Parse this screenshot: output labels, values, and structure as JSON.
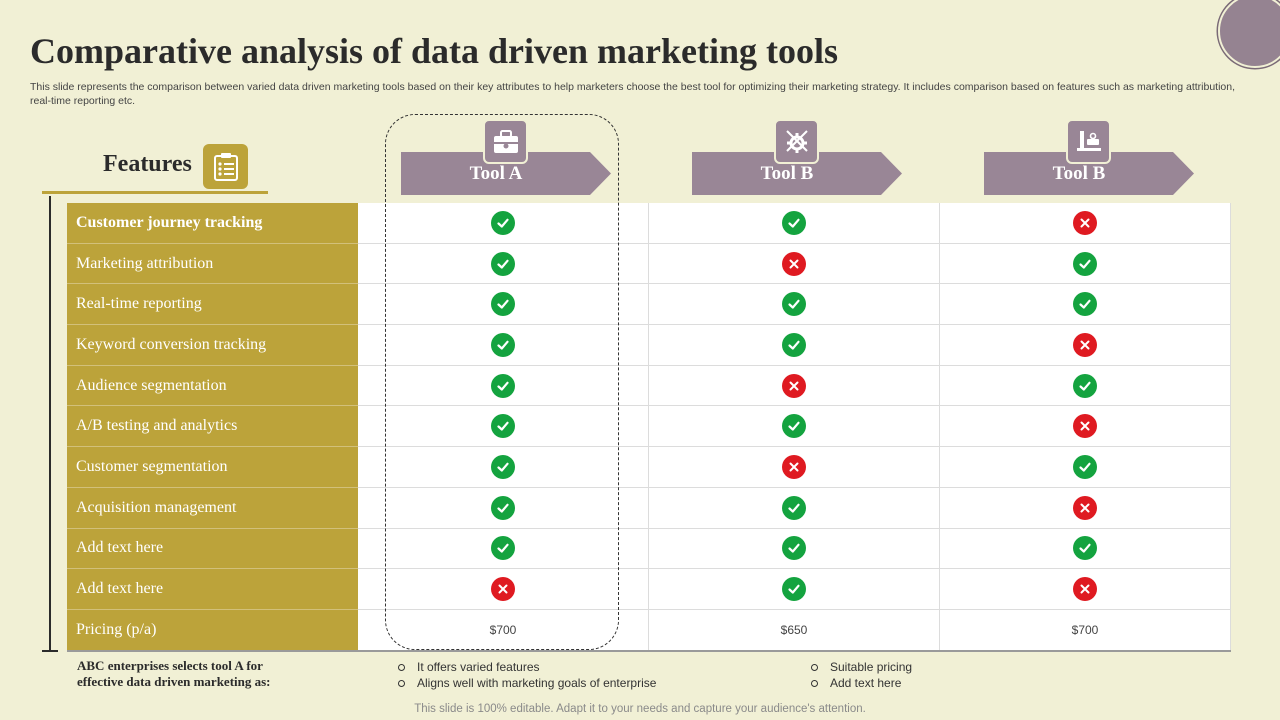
{
  "title": "Comparative analysis of data driven marketing tools",
  "subtitle": "This slide represents the comparison between varied data driven marketing tools based on their key attributes to help marketers choose the best tool for optimizing their marketing strategy. It includes comparison based on features such as marketing attribution, real-time reporting etc.",
  "features_heading": "Features",
  "tools": [
    {
      "label": "Tool A",
      "icon": "briefcase-icon"
    },
    {
      "label": "Tool B",
      "icon": "gear-tools-icon"
    },
    {
      "label": "Tool B",
      "icon": "workbench-tools-icon"
    }
  ],
  "rows": [
    {
      "feature": "Customer journey tracking",
      "values": [
        "yes",
        "yes",
        "no"
      ]
    },
    {
      "feature": "Marketing attribution",
      "values": [
        "yes",
        "no",
        "yes"
      ]
    },
    {
      "feature": "Real-time reporting",
      "values": [
        "yes",
        "yes",
        "yes"
      ]
    },
    {
      "feature": "Keyword conversion tracking",
      "values": [
        "yes",
        "yes",
        "no"
      ]
    },
    {
      "feature": "Audience segmentation",
      "values": [
        "yes",
        "no",
        "yes"
      ]
    },
    {
      "feature": "A/B testing and analytics",
      "values": [
        "yes",
        "yes",
        "no"
      ]
    },
    {
      "feature": "Customer segmentation",
      "values": [
        "yes",
        "no",
        "yes"
      ]
    },
    {
      "feature": "Acquisition management",
      "values": [
        "yes",
        "yes",
        "no"
      ]
    },
    {
      "feature": "Add text here",
      "values": [
        "yes",
        "yes",
        "yes"
      ]
    },
    {
      "feature": "Add text here",
      "values": [
        "no",
        "yes",
        "no"
      ]
    }
  ],
  "pricing": {
    "feature": "Pricing (p/a)",
    "values": [
      "$700",
      "$650",
      "$700"
    ]
  },
  "conclusion": {
    "line1": "ABC enterprises selects tool A for",
    "line2": "effective data driven marketing as:",
    "bullets_left": [
      "It offers varied features",
      "Aligns well with marketing goals of enterprise"
    ],
    "bullets_right": [
      "Suitable pricing",
      "Add text here"
    ]
  },
  "footer": "This slide is 100% editable. Adapt it to your needs and capture your audience's attention.",
  "colors": {
    "background": "#f1f0d5",
    "gold": "#bca33a",
    "mauve": "#998696",
    "yes": "#14a33f",
    "no": "#df1a21"
  }
}
